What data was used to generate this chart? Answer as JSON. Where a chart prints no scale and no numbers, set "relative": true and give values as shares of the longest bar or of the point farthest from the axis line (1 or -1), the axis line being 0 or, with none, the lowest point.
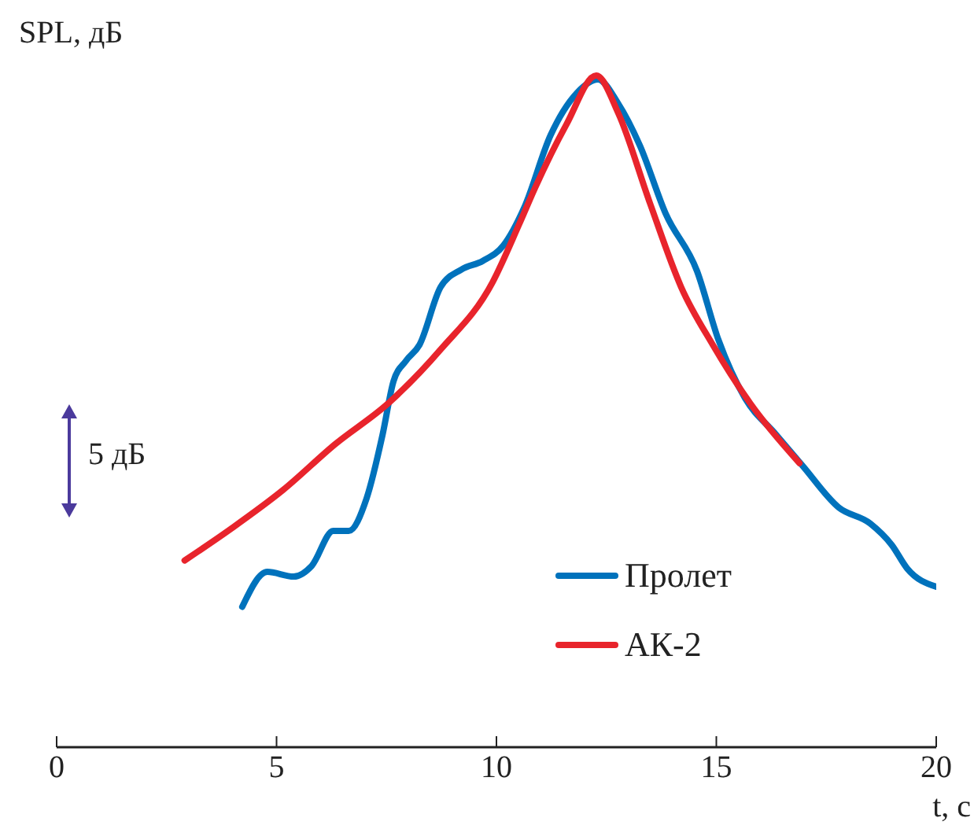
{
  "chart_data": {
    "type": "line",
    "relative": true,
    "ylabel": "SPL, дБ",
    "xlabel": "t, с",
    "annotations": [
      "5 дБ"
    ],
    "xlim": [
      0,
      20
    ],
    "xticks": [
      0,
      5,
      10,
      15,
      20
    ],
    "legend": "bottom right",
    "marker": "none",
    "line_style": "solid",
    "grid": false,
    "series": [
      {
        "name": "Пролет",
        "color": "#0072bc",
        "x": [
          4.22,
          4.79,
          5.39,
          5.8,
          6.29,
          6.64,
          7.05,
          7.41,
          7.66,
          7.94,
          8.25,
          8.73,
          9.2,
          9.69,
          10.16,
          10.63,
          11.23,
          11.83,
          12.31,
          12.77,
          13.26,
          13.85,
          14.56,
          15.05,
          15.64,
          16.35,
          16.96,
          17.78,
          18.5,
          18.99,
          19.34,
          20
        ],
        "values": [
          0.209,
          0.261,
          0.254,
          0.27,
          0.322,
          0.322,
          0.371,
          0.465,
          0.545,
          0.575,
          0.599,
          0.685,
          0.711,
          0.724,
          0.747,
          0.803,
          0.911,
          0.974,
          0.994,
          0.958,
          0.896,
          0.794,
          0.709,
          0.606,
          0.521,
          0.466,
          0.419,
          0.357,
          0.333,
          0.301,
          0.266,
          0.239
        ]
      },
      {
        "name": "АК-2",
        "color": "#e8242c",
        "x": [
          2.91,
          3.96,
          5.15,
          6.33,
          7.54,
          8.73,
          9.91,
          10.52,
          10.88,
          11.59,
          12.27,
          12.77,
          13.49,
          14.2,
          14.92,
          15.77,
          16.89
        ],
        "values": [
          0.278,
          0.325,
          0.383,
          0.451,
          0.512,
          0.592,
          0.692,
          0.779,
          0.833,
          0.927,
          1.0,
          0.944,
          0.81,
          0.685,
          0.599,
          0.512,
          0.423
        ]
      }
    ]
  }
}
